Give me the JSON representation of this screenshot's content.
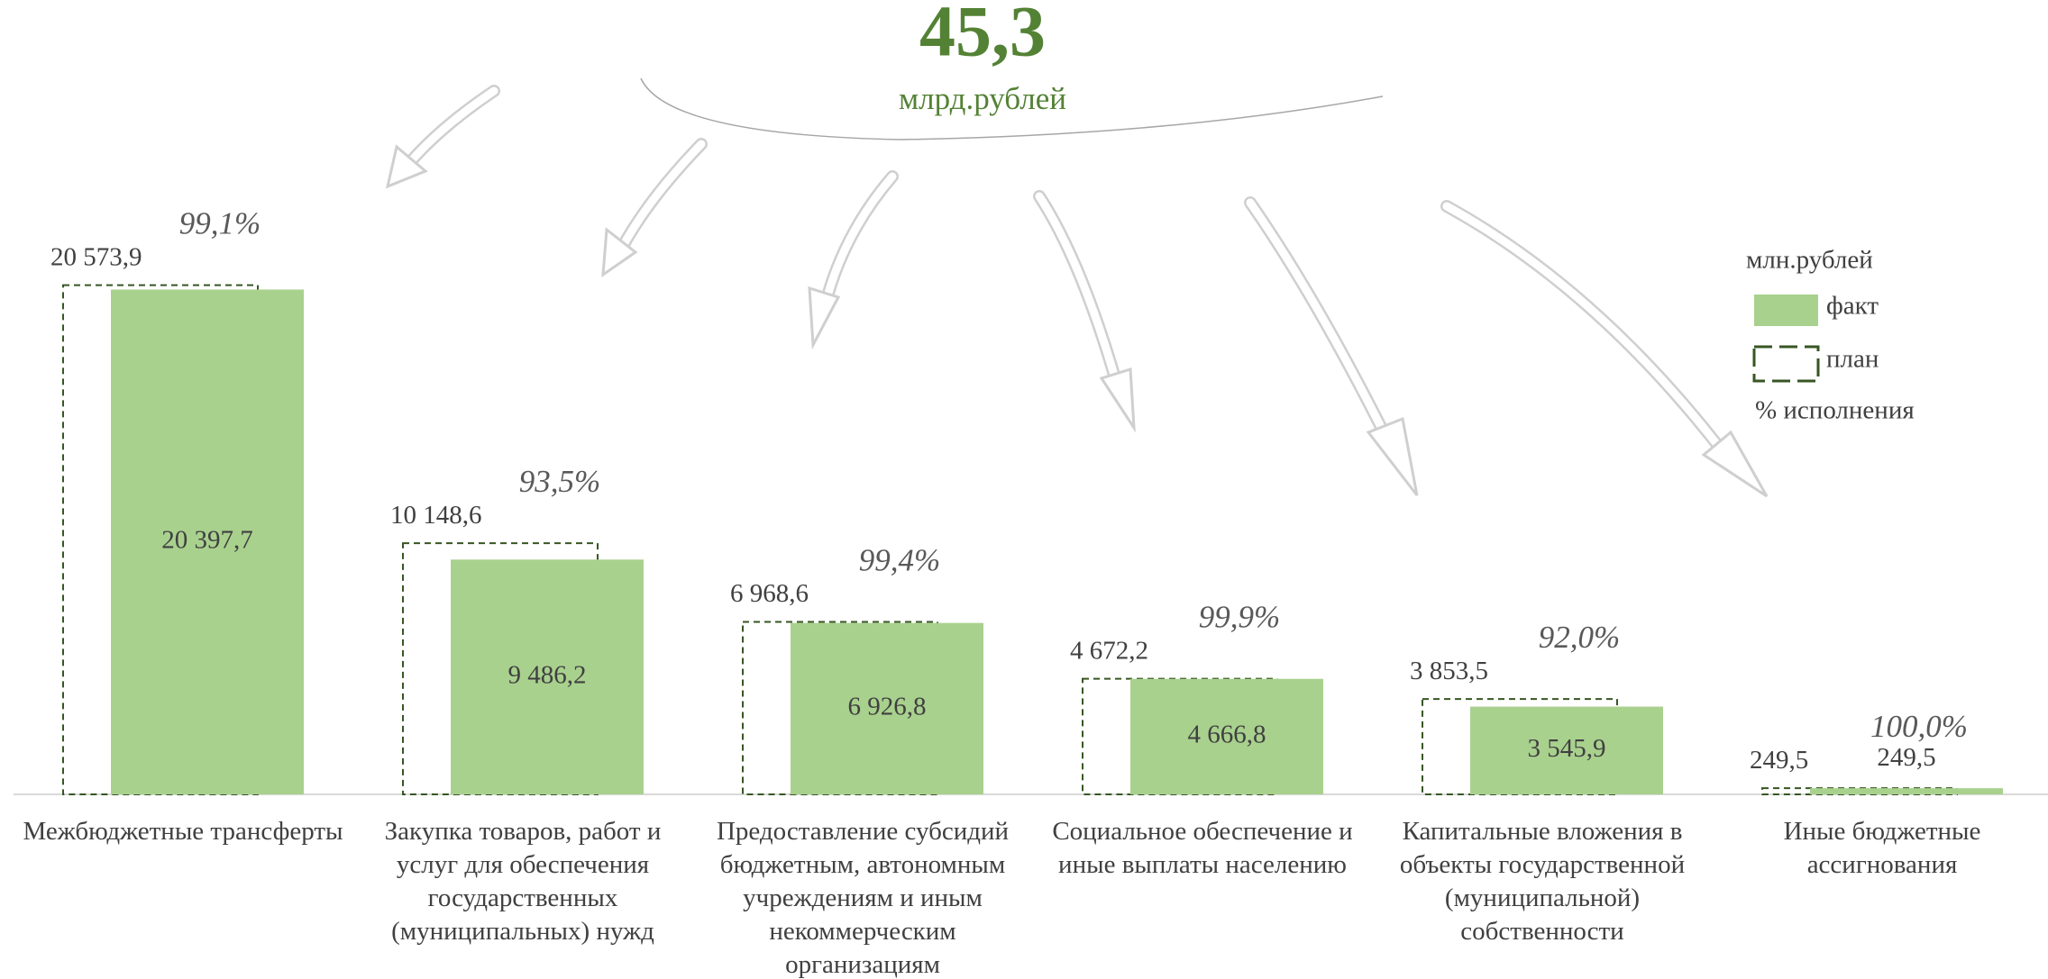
{
  "header": {
    "total": "45,3",
    "unit": "млрд.рублей"
  },
  "chart_data": {
    "type": "bar",
    "categories": [
      "Межбюджетные трансферты",
      "Закупка товаров, работ и услуг для обеспечения государственных (муниципальных) нужд",
      "Предоставление субсидий бюджетным, автономным учреждениям и иным некоммерческим организациям",
      "Социальное обеспечение и иные выплаты населению",
      "Капитальные вложения в объекты государственной (муниципальной) собственности",
      "Иные бюджетные ассигнования"
    ],
    "unit_label": "млн.рублей",
    "series": [
      {
        "name": "факт",
        "color": "#a9d18e",
        "values": [
          20397.7,
          9486.2,
          6926.8,
          4666.8,
          3545.9,
          249.5
        ],
        "value_labels": [
          "20 397,7",
          "9 486,2",
          "6 926,8",
          "4 666,8",
          "3 545,9",
          "249,5"
        ]
      },
      {
        "name": "план",
        "color": "#375623",
        "values": [
          20573.9,
          10148.6,
          6968.6,
          4672.2,
          3853.5,
          249.5
        ],
        "value_labels": [
          "20 573,9",
          "10 148,6",
          "6 968,6",
          "4 672,2",
          "3 853,5",
          "249,5"
        ]
      },
      {
        "name": "% исполнения",
        "color": "#595959",
        "values": [
          99.1,
          93.5,
          99.4,
          99.9,
          92.0,
          100.0
        ],
        "value_labels": [
          "99,1%",
          "93,5%",
          "99,4%",
          "99,9%",
          "92,0%",
          "100,0%"
        ]
      }
    ],
    "ylim": [
      0,
      25000
    ]
  }
}
